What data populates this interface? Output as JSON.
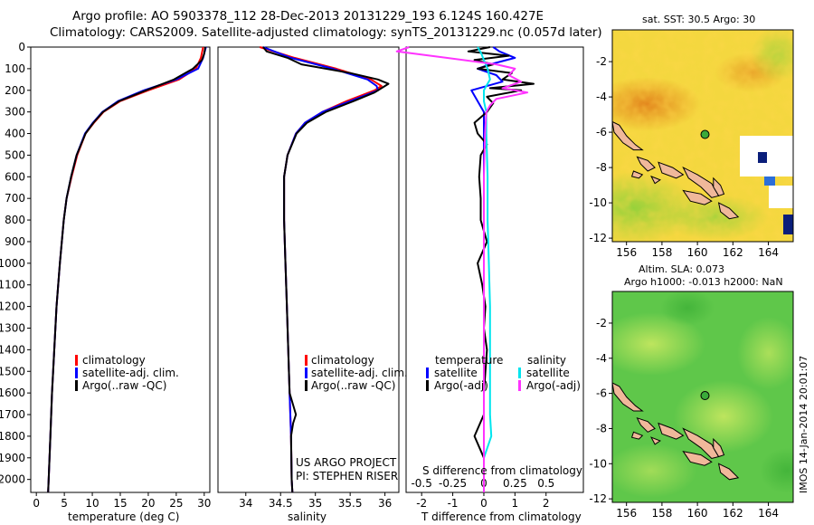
{
  "header": {
    "line1": "Argo profile: AO 5903378_112 28-Dec-2013 20131229_193 6.124S 160.427E",
    "line2": "Climatology: CARS2009. Satellite-adjusted climatology: synTS_20131229.nc (0.057d later)"
  },
  "credit": "IMOS 14-Jan-2014 20:01:07",
  "project": {
    "line1": "US ARGO PROJECT",
    "line2": "PI: STEPHEN RISER"
  },
  "colors": {
    "climatology": "#ff0000",
    "satellite": "#0000ff",
    "argo": "#000000",
    "salinity_satellite": "#00e5ee",
    "salinity_argo": "#ff33ff",
    "land": "#f0b89a"
  },
  "chart_data": [
    {
      "id": "temperature",
      "type": "line",
      "xlabel": "temperature (deg C)",
      "ylabel": "",
      "xlim": [
        -1,
        31
      ],
      "ylim": [
        2060,
        0
      ],
      "xticks": [
        0,
        5,
        10,
        15,
        20,
        25,
        30
      ],
      "yticks": [
        0,
        100,
        200,
        300,
        400,
        500,
        600,
        700,
        800,
        900,
        1000,
        1100,
        1200,
        1300,
        1400,
        1500,
        1600,
        1700,
        1800,
        1900,
        2000
      ],
      "legend": [
        "climatology",
        "satellite-adj. clim.",
        "Argo(..raw -QC)"
      ],
      "legend_position": "lower-center",
      "series": [
        {
          "name": "climatology",
          "color": "red",
          "depth": [
            0,
            50,
            100,
            150,
            200,
            250,
            300,
            350,
            400,
            500,
            600,
            700,
            800,
            1000,
            1200,
            1400,
            1600,
            1800,
            2000,
            2060
          ],
          "values": [
            29.8,
            29.4,
            28.5,
            25.5,
            20.0,
            15.0,
            12.0,
            10.3,
            8.8,
            7.3,
            6.3,
            5.4,
            4.9,
            4.2,
            3.6,
            3.2,
            2.8,
            2.5,
            2.2,
            2.1
          ]
        },
        {
          "name": "satellite-adj. clim.",
          "color": "blue",
          "depth": [
            0,
            50,
            100,
            150,
            200,
            250,
            300,
            350,
            400,
            500,
            600,
            700,
            800,
            1000,
            1200,
            1400,
            1600,
            1800,
            2000,
            2060
          ],
          "values": [
            30.3,
            29.8,
            28.9,
            25.0,
            19.2,
            14.6,
            11.8,
            10.1,
            8.7,
            7.2,
            6.2,
            5.4,
            4.9,
            4.2,
            3.6,
            3.2,
            2.8,
            2.5,
            2.2,
            2.1
          ]
        },
        {
          "name": "Argo(..raw -QC)",
          "color": "black",
          "depth": [
            0,
            30,
            60,
            100,
            150,
            200,
            250,
            300,
            350,
            400,
            500,
            600,
            700,
            800,
            1000,
            1200,
            1400,
            1600,
            1800,
            2000,
            2060
          ],
          "values": [
            30.2,
            30.0,
            29.6,
            28.0,
            24.6,
            19.6,
            14.8,
            11.9,
            10.2,
            8.8,
            7.2,
            6.2,
            5.4,
            4.9,
            4.2,
            3.6,
            3.2,
            2.8,
            2.5,
            2.2,
            2.1
          ]
        }
      ]
    },
    {
      "id": "salinity",
      "type": "line",
      "xlabel": "salinity",
      "ylabel": "",
      "xlim": [
        33.6,
        36.2
      ],
      "ylim": [
        2060,
        0
      ],
      "xticks": [
        34,
        34.5,
        35,
        35.5,
        36
      ],
      "legend": [
        "climatology",
        "satellite-adj. clim.",
        "Argo(..raw -QC)"
      ],
      "legend_position": "lower-right",
      "series": [
        {
          "name": "climatology",
          "color": "red",
          "depth": [
            0,
            50,
            100,
            150,
            180,
            200,
            250,
            300,
            350,
            400,
            500,
            600,
            800,
            1000,
            1200,
            1400,
            1600,
            1800,
            2000,
            2060
          ],
          "values": [
            34.2,
            34.7,
            35.3,
            35.8,
            35.95,
            35.85,
            35.45,
            35.1,
            34.85,
            34.72,
            34.6,
            34.55,
            34.55,
            34.57,
            34.59,
            34.61,
            34.63,
            34.65,
            34.66,
            34.67
          ]
        },
        {
          "name": "satellite-adj. clim.",
          "color": "blue",
          "depth": [
            0,
            50,
            100,
            150,
            180,
            200,
            250,
            300,
            350,
            400,
            500,
            600,
            800,
            1000,
            1200,
            1400,
            1600,
            1800,
            2000,
            2060
          ],
          "values": [
            34.25,
            34.65,
            35.25,
            35.75,
            35.88,
            35.9,
            35.5,
            35.1,
            34.85,
            34.72,
            34.6,
            34.55,
            34.55,
            34.57,
            34.59,
            34.61,
            34.63,
            34.65,
            34.66,
            34.67
          ]
        },
        {
          "name": "Argo(..raw -QC)",
          "color": "black",
          "depth": [
            0,
            20,
            50,
            80,
            120,
            150,
            170,
            190,
            210,
            250,
            300,
            350,
            400,
            500,
            600,
            800,
            1000,
            1200,
            1400,
            1600,
            1700,
            1740,
            1800,
            2000,
            2060
          ],
          "values": [
            34.25,
            34.3,
            34.6,
            34.8,
            35.5,
            35.9,
            36.05,
            35.95,
            35.85,
            35.55,
            35.15,
            34.88,
            34.73,
            34.6,
            34.55,
            34.55,
            34.57,
            34.59,
            34.61,
            34.63,
            34.72,
            34.68,
            34.65,
            34.66,
            34.67
          ]
        }
      ]
    },
    {
      "id": "differences",
      "type": "line",
      "xlabel": "T difference from climatology",
      "x2label": "S difference from climatology",
      "xlim": [
        -2.5,
        3.2
      ],
      "ylim": [
        2060,
        0
      ],
      "xticks": [
        -2,
        -1,
        0,
        1,
        2
      ],
      "x2ticks": [
        -0.5,
        -0.25,
        0,
        0.25,
        0.5
      ],
      "x2tick_labels": [
        "-0.5",
        "-0.25",
        "0",
        "0.25",
        "0.5"
      ],
      "legend_temperature_title": "temperature",
      "legend_salinity_title": "salinity",
      "legend": [
        "satellite",
        "Argo(-adj)",
        "satellite",
        "Argo(-adj)"
      ],
      "legend_position": "lower-center",
      "series": [
        {
          "name": "temperature satellite",
          "color": "blue",
          "depth": [
            0,
            20,
            50,
            80,
            100,
            130,
            160,
            200,
            250,
            300,
            400,
            600,
            1000,
            1500,
            2000,
            2060
          ],
          "values": [
            0.3,
            0.5,
            1.0,
            0.2,
            -0.2,
            0.4,
            0.6,
            -0.4,
            -0.2,
            0.0,
            0.0,
            0.0,
            0.0,
            0.0,
            0.0,
            0.0
          ]
        },
        {
          "name": "temperature Argo(-adj)",
          "color": "black",
          "depth": [
            0,
            20,
            40,
            60,
            80,
            100,
            120,
            150,
            170,
            190,
            200,
            230,
            260,
            300,
            350,
            400,
            450,
            500,
            600,
            700,
            800,
            900,
            1000,
            1100,
            1200,
            1300,
            1400,
            1500,
            1600,
            1700,
            1800,
            1900,
            2000,
            2060
          ],
          "values": [
            0.2,
            -0.5,
            0.8,
            -0.3,
            0.3,
            -0.2,
            0.9,
            0.6,
            1.6,
            0.2,
            1.2,
            0.1,
            0.3,
            0.1,
            -0.3,
            -0.2,
            0.1,
            -0.1,
            -0.15,
            -0.1,
            -0.1,
            0.1,
            -0.2,
            -0.05,
            0.05,
            0.0,
            0.1,
            0.05,
            0.0,
            0.0,
            -0.3,
            0.0,
            0.0,
            0.0
          ]
        },
        {
          "name": "salinity satellite",
          "color": "cyan",
          "depth": [
            0,
            30,
            60,
            100,
            150,
            200,
            250,
            300,
            400,
            600,
            800,
            1000,
            1200,
            1500,
            1700,
            1800,
            1900,
            2000,
            2060
          ],
          "values": [
            -0.05,
            -0.02,
            0.0,
            0.03,
            0.05,
            0.0,
            0.0,
            0.02,
            0.02,
            0.03,
            0.03,
            0.04,
            0.05,
            0.05,
            0.05,
            0.06,
            0.0,
            0.0,
            0.0
          ]
        },
        {
          "name": "salinity Argo(-adj)",
          "color": "magenta",
          "depth": [
            0,
            20,
            50,
            80,
            100,
            130,
            160,
            190,
            210,
            240,
            270,
            300,
            400,
            600,
            1000,
            1400,
            1700,
            1800,
            2000,
            2060
          ],
          "values": [
            -0.6,
            -0.7,
            -0.3,
            0.1,
            0.25,
            0.2,
            0.3,
            0.15,
            0.35,
            0.1,
            0.05,
            0.02,
            0.01,
            0.0,
            0.0,
            0.0,
            0.0,
            0.0,
            0.0,
            0.0
          ]
        }
      ]
    },
    {
      "id": "sst-map",
      "type": "heatmap",
      "title": "sat. SST: 30.5 Argo: 30",
      "xlim": [
        155.2,
        165.4
      ],
      "ylim": [
        -12.2,
        -0.2
      ],
      "xticks": [
        156,
        158,
        160,
        162,
        164
      ],
      "yticks": [
        -2,
        -4,
        -6,
        -8,
        -10,
        -12
      ],
      "marker": {
        "lon": 160.427,
        "lat": -6.124
      }
    },
    {
      "id": "sla-map",
      "type": "heatmap",
      "title": "Altim. SLA: 0.073",
      "subtitle": "Argo h1000: -0.013 h2000: NaN",
      "xlim": [
        155.2,
        165.4
      ],
      "ylim": [
        -12.2,
        -0.2
      ],
      "xticks": [
        156,
        158,
        160,
        162,
        164
      ],
      "yticks": [
        -2,
        -4,
        -6,
        -8,
        -10,
        -12
      ],
      "marker": {
        "lon": 160.427,
        "lat": -6.124
      }
    }
  ]
}
